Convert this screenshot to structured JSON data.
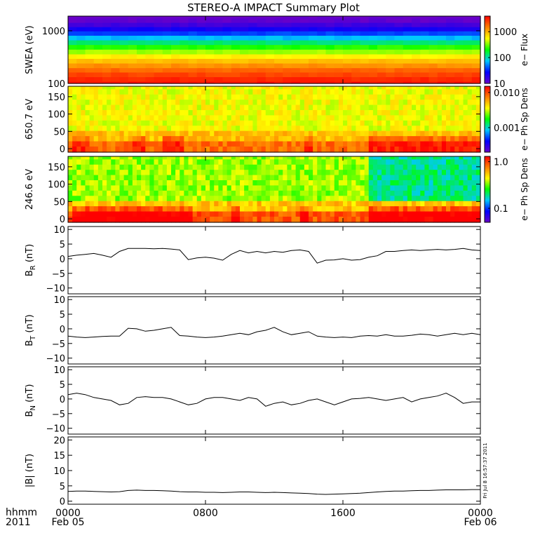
{
  "page": {
    "title": "STEREO-A IMPACT Summary Plot",
    "time_axis": {
      "label_line1": "hhmm",
      "label_line2": "2011",
      "ticks": [
        {
          "time": "0000",
          "date": "Feb 05",
          "hour": 0
        },
        {
          "time": "0800",
          "date": "",
          "hour": 8
        },
        {
          "time": "1600",
          "date": "",
          "hour": 16
        },
        {
          "time": "0000",
          "date": "Feb 06",
          "hour": 24
        }
      ],
      "range_hours": [
        0,
        24
      ]
    },
    "side_stamp": "Fri Jul  8 16:57:37 2011"
  },
  "chart_data": [
    {
      "type": "heatmap",
      "ylabel": "SWEA (eV)",
      "ylog": true,
      "ylim": [
        100,
        1900
      ],
      "yticks": [
        {
          "v": 100,
          "label": "100"
        },
        {
          "v": 1000,
          "label": "1000"
        }
      ],
      "colorbar_label": "e− Flux",
      "colorbar_log": true,
      "colorbar_range": [
        10,
        4000
      ],
      "colorbar_ticks": [
        {
          "v": 10,
          "label": "10"
        },
        {
          "v": 100,
          "label": "100"
        },
        {
          "v": 1000,
          "label": "1000"
        }
      ],
      "colormap": [
        "#6a00c8",
        "#0000ff",
        "#00c8ff",
        "#00ff00",
        "#ffff00",
        "#ff8000",
        "#ff0000"
      ],
      "x_hours": [
        0,
        24
      ],
      "y_levels": [
        100,
        120,
        150,
        180,
        220,
        270,
        330,
        400,
        500,
        600,
        750,
        900,
        1100,
        1300,
        1600,
        1900
      ],
      "flux": [
        3500,
        3000,
        2400,
        1800,
        1300,
        900,
        600,
        380,
        230,
        130,
        70,
        38,
        22,
        15,
        11,
        10
      ]
    },
    {
      "type": "heatmap",
      "ylabel": "650.7 eV",
      "ylim": [
        -10,
        180
      ],
      "yticks": [
        {
          "v": 0,
          "label": "0"
        },
        {
          "v": 50,
          "label": "50"
        },
        {
          "v": 100,
          "label": "100"
        },
        {
          "v": 150,
          "label": "150"
        }
      ],
      "colorbar_label": "e− Ph Sp Dens",
      "colorbar_log": true,
      "colorbar_range": [
        0.0002,
        0.015
      ],
      "colorbar_ticks": [
        {
          "v": 0.001,
          "label": "0.001"
        },
        {
          "v": 0.01,
          "label": "0.010"
        }
      ],
      "colormap": [
        "#6a00c8",
        "#0000ff",
        "#00c8ff",
        "#00ff00",
        "#ffff00",
        "#ff8000",
        "#ff0000"
      ],
      "x_hours": [
        0,
        24
      ],
      "pitch_angle_bins": [
        0,
        15,
        30,
        45,
        60,
        75,
        90,
        105,
        120,
        135,
        150,
        165,
        180
      ],
      "typical_density": {
        "0_30deg": 0.008,
        "30_60deg": 0.005,
        "60_180deg": 0.0035
      },
      "enhanced_intervals_hours": [
        [
          0.2,
          1.2
        ],
        [
          3.8,
          4.6
        ],
        [
          5.5,
          6.8
        ],
        [
          13.8,
          14.3
        ],
        [
          17.5,
          24
        ]
      ]
    },
    {
      "type": "heatmap",
      "ylabel": "246.6 eV",
      "ylim": [
        -10,
        180
      ],
      "yticks": [
        {
          "v": 0,
          "label": "0"
        },
        {
          "v": 50,
          "label": "50"
        },
        {
          "v": 100,
          "label": "100"
        },
        {
          "v": 150,
          "label": "150"
        }
      ],
      "colorbar_label": "e− Ph Sp Dens",
      "colorbar_log": true,
      "colorbar_range": [
        0.05,
        1.3
      ],
      "colorbar_ticks": [
        {
          "v": 0.1,
          "label": "0.1"
        },
        {
          "v": 1.0,
          "label": "1.0"
        }
      ],
      "colormap": [
        "#6a00c8",
        "#0000ff",
        "#00c8ff",
        "#00ff00",
        "#ffff00",
        "#ff8000",
        "#ff0000"
      ],
      "x_hours": [
        0,
        24
      ],
      "pitch_angle_bins": [
        0,
        15,
        30,
        45,
        60,
        75,
        90,
        105,
        120,
        135,
        150,
        165,
        180
      ],
      "typical_density": {
        "0_30deg": 0.9,
        "30_60deg": 0.55,
        "60_180deg": 0.35
      },
      "enhanced_intervals_hours": [
        [
          0.2,
          7.3
        ],
        [
          9.5,
          10.1
        ],
        [
          13.5,
          14
        ],
        [
          17.5,
          24
        ]
      ],
      "depleted_after_hour": 17.5
    },
    {
      "type": "line",
      "ylabel": "B",
      "ylabel_sub": "R",
      "yunit": "(nT)",
      "ylim": [
        -12,
        11
      ],
      "yticks": [
        {
          "v": -10,
          "label": "−10"
        },
        {
          "v": -5,
          "label": "−5"
        },
        {
          "v": 0,
          "label": "0"
        },
        {
          "v": 5,
          "label": "5"
        },
        {
          "v": 10,
          "label": "10"
        }
      ],
      "x": [
        0,
        0.5,
        1,
        1.5,
        2,
        2.5,
        3,
        3.5,
        4,
        4.5,
        5,
        5.5,
        6,
        6.5,
        7,
        7.5,
        8,
        8.5,
        9,
        9.5,
        10,
        10.5,
        11,
        11.5,
        12,
        12.5,
        13,
        13.5,
        14,
        14.5,
        15,
        15.5,
        16,
        16.5,
        17,
        17.5,
        18,
        18.5,
        19,
        19.5,
        20,
        20.5,
        21,
        21.5,
        22,
        22.5,
        23,
        23.5,
        24
      ],
      "y": [
        0.8,
        1.2,
        1.5,
        1.8,
        1.2,
        0.5,
        2.5,
        3.5,
        3.5,
        3.5,
        3.4,
        3.5,
        3.3,
        3.0,
        -0.3,
        0.3,
        0.5,
        0.2,
        -0.5,
        1.5,
        2.8,
        2.0,
        2.5,
        2.0,
        2.5,
        2.2,
        2.8,
        3.0,
        2.5,
        -1.5,
        -0.5,
        -0.4,
        0,
        -0.5,
        -0.3,
        0.5,
        1.0,
        2.5,
        2.5,
        2.8,
        3.0,
        2.8,
        3.0,
        3.2,
        3.0,
        3.2,
        3.5,
        3.0,
        2.8
      ]
    },
    {
      "type": "line",
      "ylabel": "B",
      "ylabel_sub": "T",
      "yunit": "(nT)",
      "ylim": [
        -12,
        11
      ],
      "yticks": [
        {
          "v": -10,
          "label": "−10"
        },
        {
          "v": -5,
          "label": "−5"
        },
        {
          "v": 0,
          "label": "0"
        },
        {
          "v": 5,
          "label": "5"
        },
        {
          "v": 10,
          "label": "10"
        }
      ],
      "x": [
        0,
        0.5,
        1,
        1.5,
        2,
        2.5,
        3,
        3.5,
        4,
        4.5,
        5,
        5.5,
        6,
        6.5,
        7,
        7.5,
        8,
        8.5,
        9,
        9.5,
        10,
        10.5,
        11,
        11.5,
        12,
        12.5,
        13,
        13.5,
        14,
        14.5,
        15,
        15.5,
        16,
        16.5,
        17,
        17.5,
        18,
        18.5,
        19,
        19.5,
        20,
        20.5,
        21,
        21.5,
        22,
        22.5,
        23,
        23.5,
        24
      ],
      "y": [
        -2.5,
        -2.8,
        -3.0,
        -2.8,
        -2.6,
        -2.5,
        -2.5,
        0.2,
        0.0,
        -0.8,
        -0.5,
        0.0,
        0.5,
        -2.3,
        -2.5,
        -2.8,
        -3.0,
        -2.8,
        -2.5,
        -2.0,
        -1.5,
        -2.0,
        -1.0,
        -0.5,
        0.5,
        -1.0,
        -2.0,
        -1.5,
        -1.0,
        -2.5,
        -2.8,
        -3.0,
        -2.8,
        -3.0,
        -2.5,
        -2.3,
        -2.5,
        -2.0,
        -2.5,
        -2.5,
        -2.2,
        -1.8,
        -2.0,
        -2.5,
        -2.0,
        -1.5,
        -2.0,
        -1.5,
        -2.0
      ]
    },
    {
      "type": "line",
      "ylabel": "B",
      "ylabel_sub": "N",
      "yunit": "(nT)",
      "ylim": [
        -12,
        11
      ],
      "yticks": [
        {
          "v": -10,
          "label": "−10"
        },
        {
          "v": -5,
          "label": "−5"
        },
        {
          "v": 0,
          "label": "0"
        },
        {
          "v": 5,
          "label": "5"
        },
        {
          "v": 10,
          "label": "10"
        }
      ],
      "x": [
        0,
        0.5,
        1,
        1.5,
        2,
        2.5,
        3,
        3.5,
        4,
        4.5,
        5,
        5.5,
        6,
        6.5,
        7,
        7.5,
        8,
        8.5,
        9,
        9.5,
        10,
        10.5,
        11,
        11.5,
        12,
        12.5,
        13,
        13.5,
        14,
        14.5,
        15,
        15.5,
        16,
        16.5,
        17,
        17.5,
        18,
        18.5,
        19,
        19.5,
        20,
        20.5,
        21,
        21.5,
        22,
        22.5,
        23,
        23.5,
        24
      ],
      "y": [
        1.5,
        2.0,
        1.5,
        0.5,
        0.0,
        -0.5,
        -2.0,
        -1.5,
        0.5,
        0.8,
        0.5,
        0.5,
        0.0,
        -1.0,
        -2.0,
        -1.5,
        0.0,
        0.5,
        0.5,
        0.0,
        -0.5,
        0.5,
        0.0,
        -2.5,
        -1.5,
        -1.0,
        -2.0,
        -1.5,
        -0.5,
        0.0,
        -1.0,
        -2.0,
        -1.0,
        0.0,
        0.2,
        0.5,
        0.0,
        -0.5,
        0.0,
        0.5,
        -1.0,
        0.0,
        0.5,
        1.0,
        2.0,
        0.5,
        -1.5,
        -1.0,
        -1.0
      ]
    },
    {
      "type": "line",
      "ylabel": "|B|",
      "ylabel_sub": "",
      "yunit": "(nT)",
      "ylim": [
        -1,
        21
      ],
      "yticks": [
        {
          "v": 0,
          "label": "0"
        },
        {
          "v": 5,
          "label": "5"
        },
        {
          "v": 10,
          "label": "10"
        },
        {
          "v": 15,
          "label": "15"
        },
        {
          "v": 20,
          "label": "20"
        }
      ],
      "x": [
        0,
        0.5,
        1,
        1.5,
        2,
        2.5,
        3,
        3.5,
        4,
        4.5,
        5,
        5.5,
        6,
        6.5,
        7,
        7.5,
        8,
        8.5,
        9,
        9.5,
        10,
        10.5,
        11,
        11.5,
        12,
        12.5,
        13,
        13.5,
        14,
        14.5,
        15,
        15.5,
        16,
        16.5,
        17,
        17.5,
        18,
        18.5,
        19,
        19.5,
        20,
        20.5,
        21,
        21.5,
        22,
        22.5,
        23,
        23.5,
        24
      ],
      "y": [
        3.2,
        3.3,
        3.3,
        3.2,
        3.1,
        3.0,
        3.1,
        3.5,
        3.6,
        3.5,
        3.5,
        3.4,
        3.3,
        3.1,
        3.0,
        3.0,
        2.9,
        2.9,
        2.8,
        2.9,
        3.0,
        3.0,
        2.9,
        2.8,
        2.9,
        2.8,
        2.7,
        2.6,
        2.5,
        2.3,
        2.2,
        2.3,
        2.4,
        2.5,
        2.6,
        2.8,
        3.0,
        3.2,
        3.3,
        3.3,
        3.4,
        3.5,
        3.5,
        3.6,
        3.7,
        3.7,
        3.7,
        3.8,
        3.8
      ]
    }
  ]
}
